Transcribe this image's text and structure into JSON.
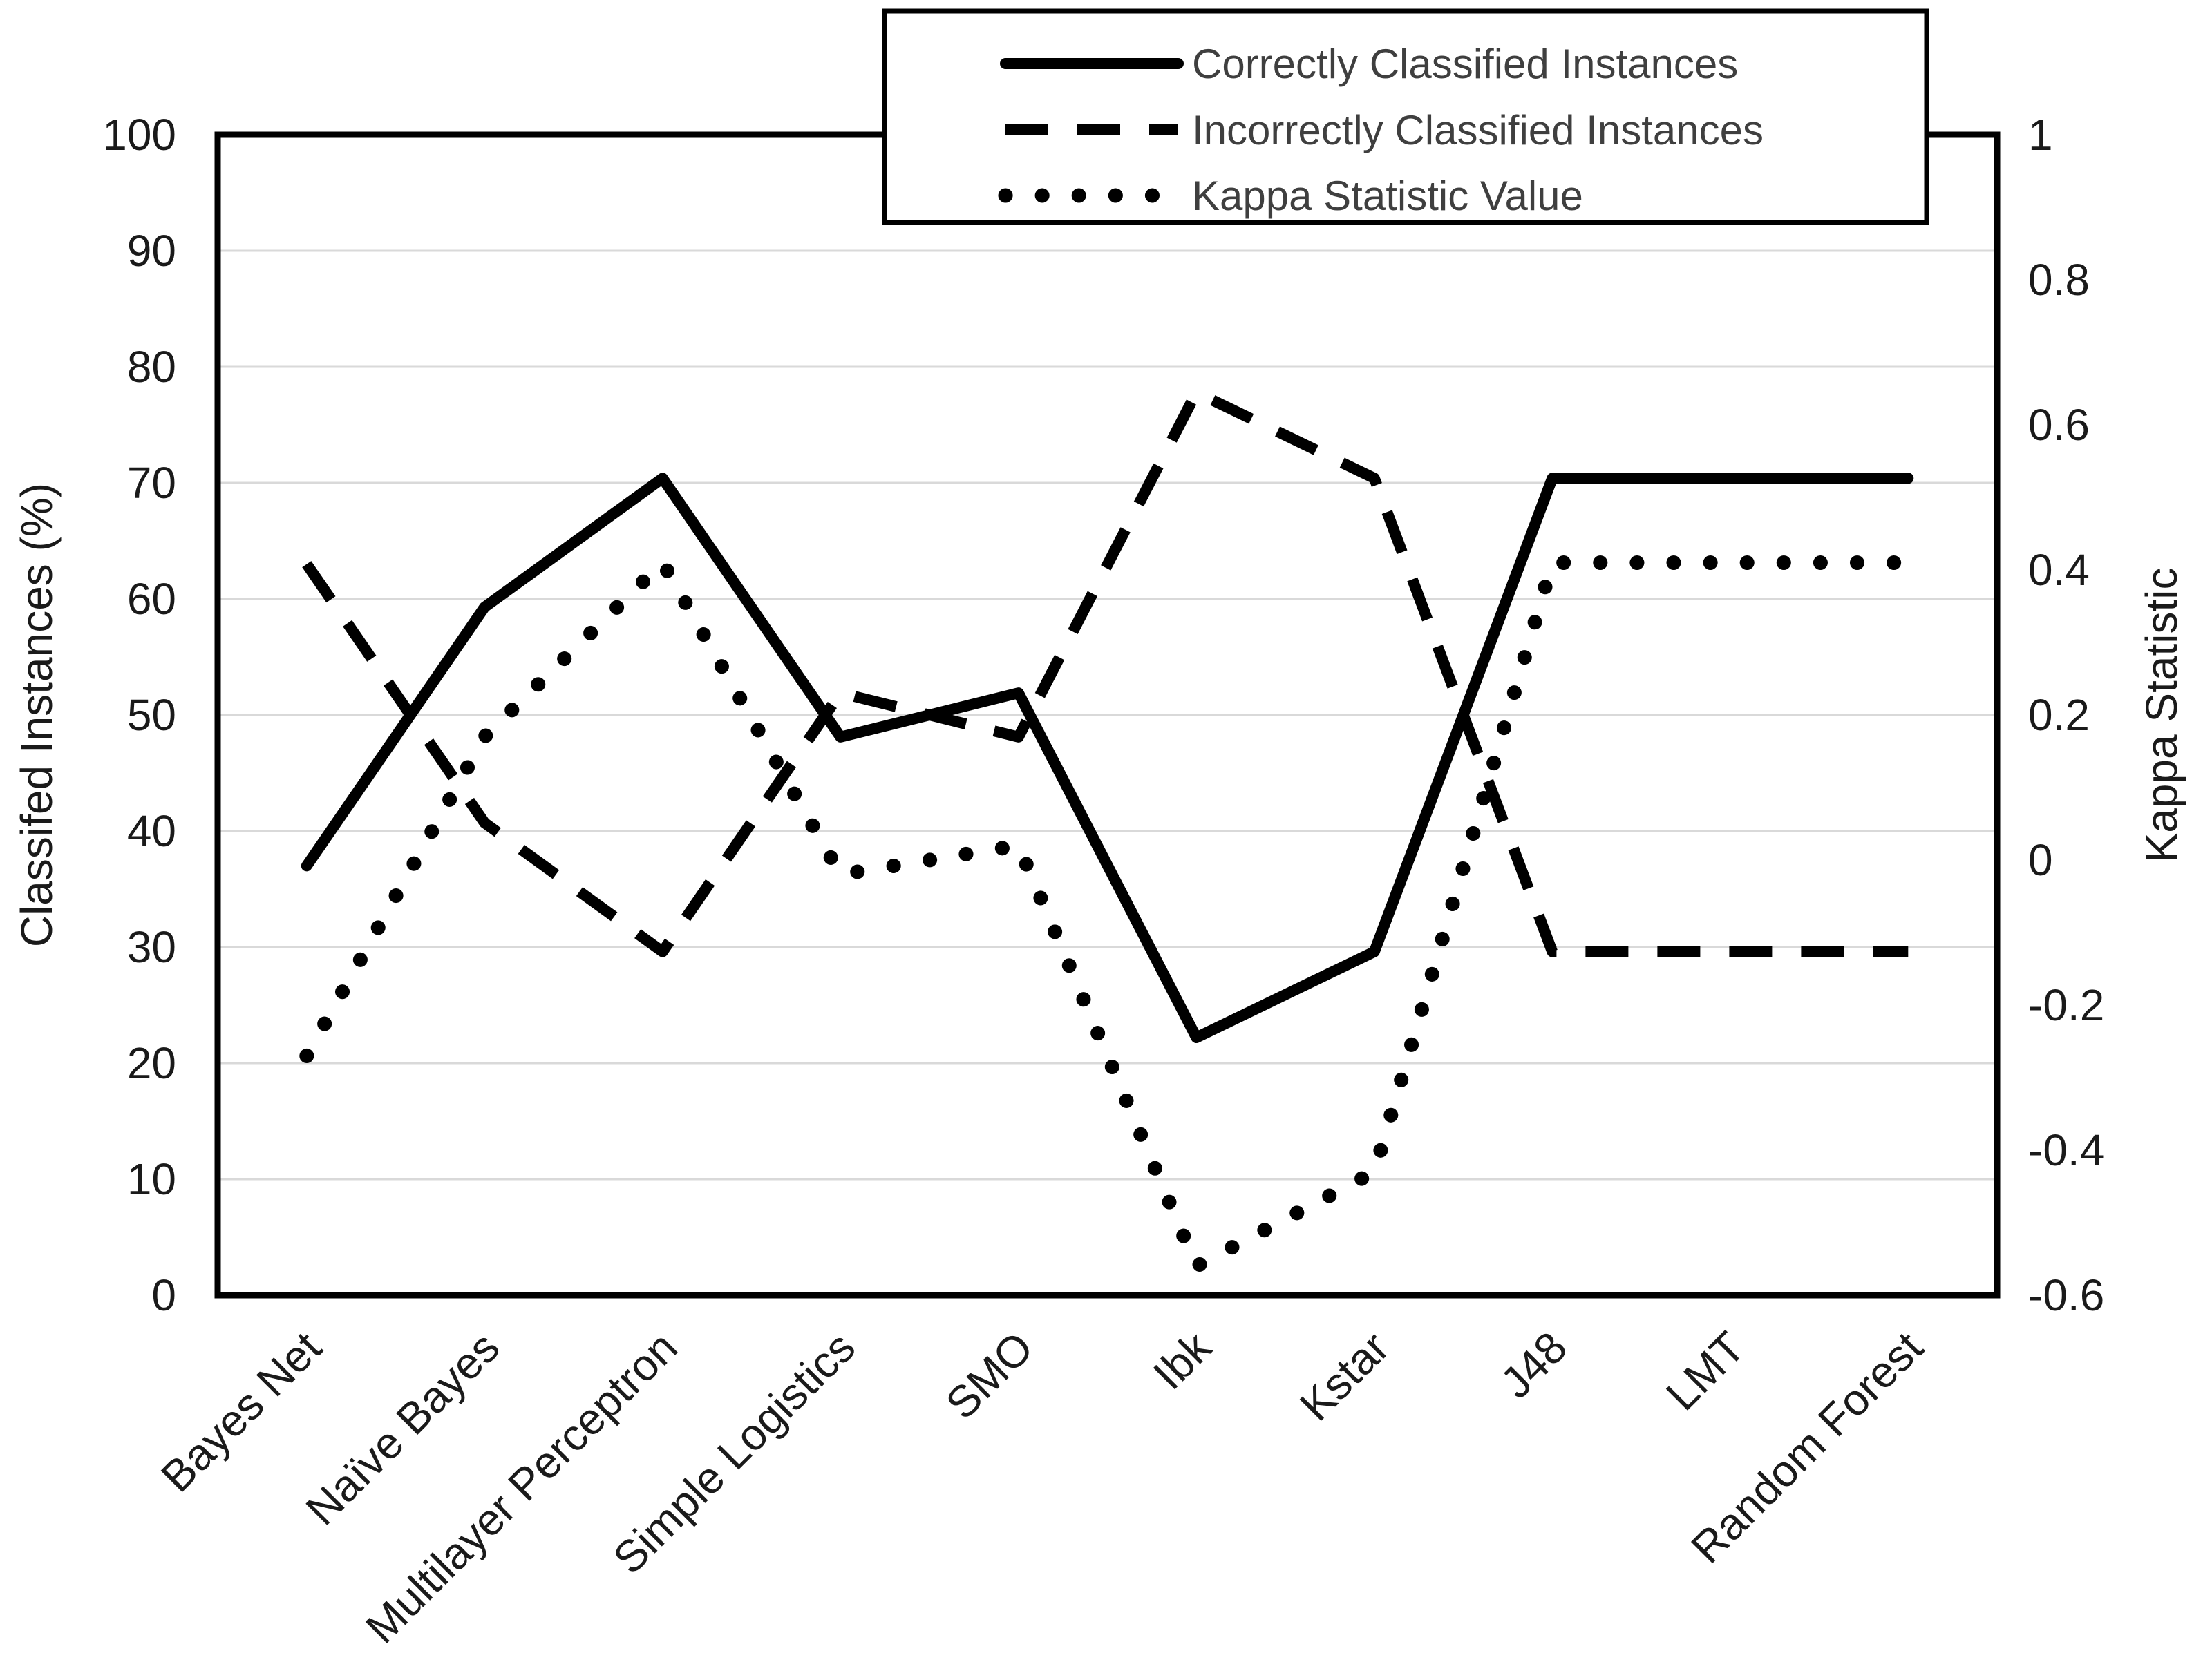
{
  "chart_data": {
    "type": "line",
    "title": "",
    "categories": [
      "Bayes Net",
      "Naïve Bayes",
      "Multilayer Perceptron",
      "Simple Logistics",
      "SMO",
      "Ibk",
      "Kstar",
      "J48",
      "LMT",
      "Random Forest"
    ],
    "series": [
      {
        "name": "Correctly Classified Instances",
        "style": "solid",
        "axis": "left",
        "values": [
          37.0,
          59.3,
          70.4,
          48.1,
          51.9,
          22.2,
          29.6,
          70.4,
          70.4,
          70.4
        ]
      },
      {
        "name": "Incorrectly Classified Instances",
        "style": "dashed",
        "axis": "left",
        "values": [
          63.0,
          40.7,
          29.6,
          51.9,
          48.1,
          77.8,
          70.4,
          29.6,
          29.6,
          29.6
        ]
      },
      {
        "name": "Kappa Statistic Value",
        "style": "dotted",
        "axis": "right",
        "values": [
          -0.27,
          0.17,
          0.41,
          -0.02,
          0.02,
          -0.56,
          -0.43,
          0.41,
          0.41,
          0.41
        ]
      }
    ],
    "left_axis": {
      "label": "Classifed Instances (%)",
      "ticks": [
        "0",
        "10",
        "20",
        "30",
        "40",
        "50",
        "60",
        "70",
        "80",
        "90",
        "100"
      ],
      "range": [
        0,
        100
      ]
    },
    "right_axis": {
      "label": "Kappa Statistic",
      "ticks": [
        "1",
        "0.8",
        "0.6",
        "0.4",
        "0.2",
        "0",
        "-0.2",
        "-0.4",
        "-0.6"
      ],
      "range": [
        -0.6,
        1
      ]
    },
    "grid": "horizontal",
    "legend_position": "top",
    "colors": {
      "line": "#000000",
      "grid": "#d9d9d9",
      "text": "#1a1a1a",
      "legend_text": "#3f3f3f",
      "border": "#000000",
      "background": "#ffffff"
    }
  }
}
